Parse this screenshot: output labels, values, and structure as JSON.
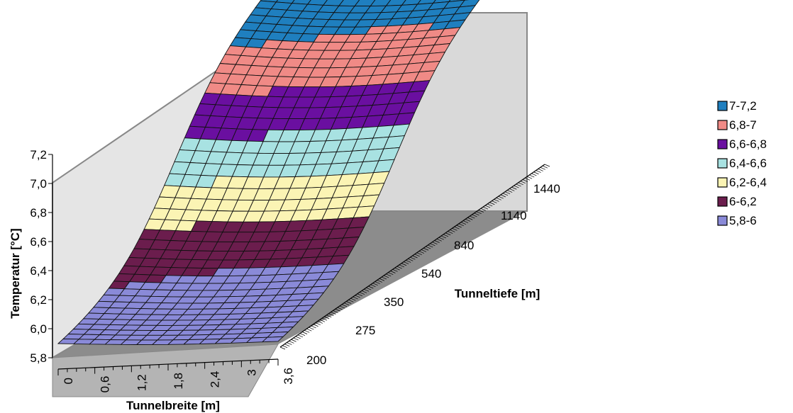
{
  "chart_data": {
    "type": "surface",
    "xlabel": "Tunnelbreite [m]",
    "ylabel": "Tunneltiefe [m]",
    "zlabel": "Temperatur [°C]",
    "x_ticks": [
      "0",
      "0,6",
      "1,2",
      "1,8",
      "2,4",
      "3",
      "3,6"
    ],
    "y_ticks": [
      "200",
      "275",
      "350",
      "540",
      "840",
      "1140",
      "1440"
    ],
    "z_ticks": [
      "5,8",
      "6,0",
      "6,2",
      "6,4",
      "6,6",
      "6,8",
      "7,0",
      "7,2"
    ],
    "zlim": [
      5.8,
      7.2
    ],
    "legend_position": "right",
    "legend": [
      {
        "label": "7-7,2",
        "color": "#1f7fbf"
      },
      {
        "label": "6,8-7",
        "color": "#f08a86"
      },
      {
        "label": "6,6-6,8",
        "color": "#6a0fa0"
      },
      {
        "label": "6,4-6,6",
        "color": "#a8e2e2"
      },
      {
        "label": "6,2-6,4",
        "color": "#fbf4b4"
      },
      {
        "label": "6-6,2",
        "color": "#6b1d4d"
      },
      {
        "label": "5,8-6",
        "color": "#8a8ad8"
      }
    ]
  }
}
